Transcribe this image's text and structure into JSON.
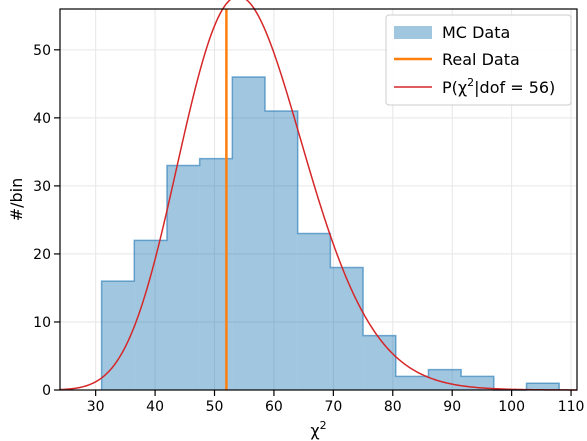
{
  "chart_data": {
    "type": "histogram",
    "xlabel": "χ",
    "xlabel_sup": "2",
    "ylabel": "#/bin",
    "xlim": [
      24,
      111
    ],
    "ylim": [
      0,
      56
    ],
    "grid": true,
    "legend_position": "top-right",
    "x_ticks": [
      30,
      40,
      50,
      60,
      70,
      80,
      90,
      100,
      110
    ],
    "y_ticks": [
      0,
      10,
      20,
      30,
      40,
      50
    ],
    "histogram": {
      "name": "MC Data",
      "color": "#1f77b4",
      "bin_edges": [
        31.0,
        36.5,
        42.0,
        47.5,
        53.0,
        58.5,
        64.0,
        69.5,
        75.0,
        80.5,
        86.0,
        91.5,
        97.0,
        102.5,
        108.0
      ],
      "counts": [
        16,
        22,
        33,
        34,
        46,
        41,
        23,
        18,
        8,
        2,
        3,
        2,
        0,
        1
      ]
    },
    "real_data": {
      "name": "Real Data",
      "color": "#ff7f0e",
      "x": 52
    },
    "curve": {
      "name": "P(χ²|dof = 56)",
      "color": "#d62728",
      "dof": 56,
      "normalization": 1512
    }
  },
  "legend": [
    {
      "label": "MC Data",
      "kind": "patch",
      "color": "#1f77b4"
    },
    {
      "label": "Real Data",
      "kind": "line",
      "color": "#ff7f0e"
    },
    {
      "label_prefix": "P(χ",
      "label_sup": "2",
      "label_suffix": "|dof = 56)",
      "kind": "line",
      "color": "#d62728"
    }
  ]
}
